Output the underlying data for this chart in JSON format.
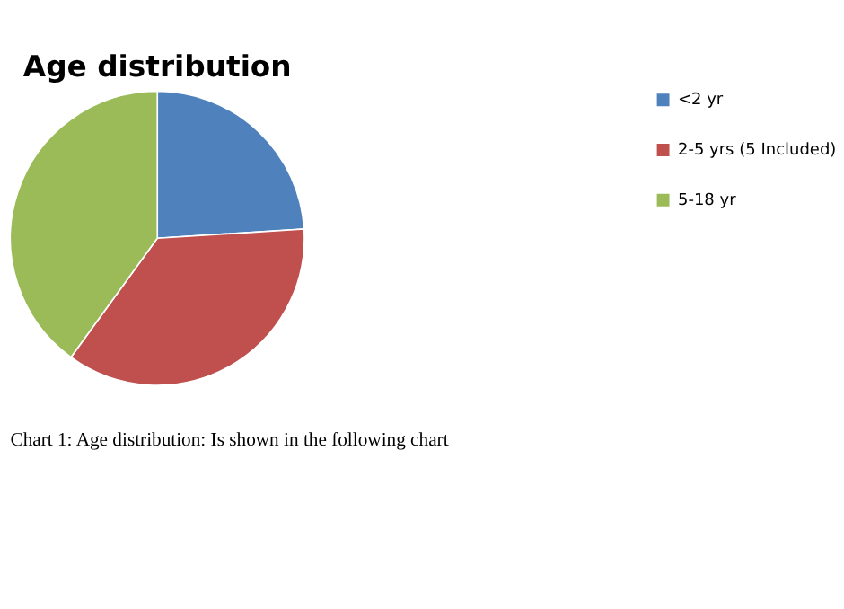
{
  "chart_data": {
    "type": "pie",
    "title": "Age distribution",
    "categories": [
      "<2 yr",
      "2-5 yrs (5 Included)",
      "5-18 yr"
    ],
    "values": [
      24,
      36,
      40
    ],
    "colors": [
      "#4f81bd",
      "#c0504d",
      "#9bbb59"
    ],
    "legend": "right",
    "annotations": [
      "Chart 1: Age distribution: Is shown in the following chart"
    ]
  }
}
